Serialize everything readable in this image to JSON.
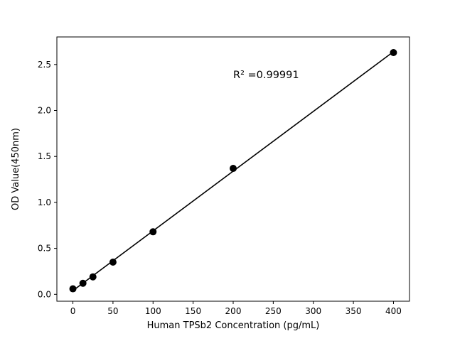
{
  "figure": {
    "background": "#ffffff"
  },
  "chart_data": {
    "type": "scatter",
    "x": [
      0,
      12.5,
      25,
      50,
      100,
      200,
      400
    ],
    "y": [
      0.06,
      0.12,
      0.19,
      0.35,
      0.68,
      1.37,
      2.63
    ],
    "series": [
      {
        "name": "standard-curve",
        "marker": "circle",
        "color": "#000000"
      }
    ],
    "fit_line": true,
    "line_color": "#000000",
    "marker_color": "#000000",
    "marker_radius": 5,
    "line_width": 1.6,
    "title": "",
    "xlabel": "Human TPSb2 Concentration (pg/mL)",
    "ylabel": "OD Value(450nm)",
    "x_ticks": [
      0,
      50,
      100,
      150,
      200,
      250,
      300,
      350,
      400
    ],
    "y_ticks": [
      0.0,
      0.5,
      1.0,
      1.5,
      2.0,
      2.5
    ],
    "xlim": [
      -20,
      420
    ],
    "ylim": [
      -0.075,
      2.8
    ],
    "grid": false,
    "legend": null,
    "annotation": {
      "text": "R² =0.99991",
      "x": 200,
      "y": 2.35
    }
  }
}
